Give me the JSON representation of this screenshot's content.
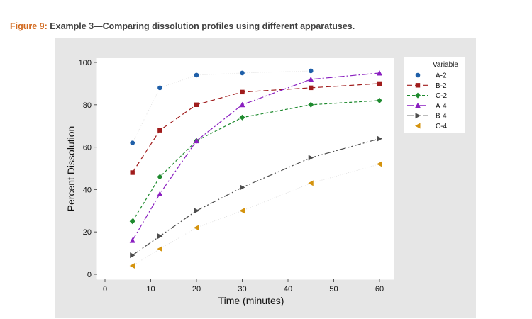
{
  "figure": {
    "label": "Figure 9:",
    "title": "Example 3—Comparing dissolution profiles using different apparatuses."
  },
  "colors": {
    "caption_label": "#d2691e",
    "panel_bg": "#e6e6e6",
    "plot_bg": "#ffffff"
  },
  "chart_data": {
    "type": "line",
    "xlabel": "Time (minutes)",
    "ylabel": "Percent Dissolution",
    "xlim": [
      0,
      60
    ],
    "ylim": [
      0,
      100
    ],
    "x_ticks": [
      0,
      10,
      20,
      30,
      40,
      50,
      60
    ],
    "y_ticks": [
      0,
      20,
      40,
      60,
      80,
      100
    ],
    "x": [
      6,
      12,
      20,
      30,
      45,
      60
    ],
    "legend": {
      "title": "Variable",
      "position": "right"
    },
    "grid": false,
    "series": [
      {
        "name": "A-2",
        "color": "#1f5fa8",
        "marker": "circle",
        "line": "dotted-light",
        "values": [
          62,
          88,
          94,
          95,
          96,
          null
        ]
      },
      {
        "name": "B-2",
        "color": "#a01c1c",
        "marker": "square",
        "line": "dashed",
        "values": [
          48,
          68,
          80,
          86,
          88,
          90
        ]
      },
      {
        "name": "C-2",
        "color": "#1e8a2e",
        "marker": "diamond",
        "line": "short-dashed",
        "values": [
          25,
          46,
          63,
          74,
          80,
          82
        ]
      },
      {
        "name": "A-4",
        "color": "#8a1fc0",
        "marker": "triangle-up",
        "line": "dash-dot",
        "values": [
          16,
          38,
          63,
          80,
          92,
          95
        ]
      },
      {
        "name": "B-4",
        "color": "#4d4d4d",
        "marker": "triangle-right",
        "line": "dash-dot-dot",
        "values": [
          9,
          18,
          30,
          41,
          55,
          64
        ]
      },
      {
        "name": "C-4",
        "color": "#d4930e",
        "marker": "triangle-left",
        "line": "dotted-light",
        "values": [
          4,
          12,
          22,
          30,
          43,
          52
        ]
      }
    ]
  }
}
